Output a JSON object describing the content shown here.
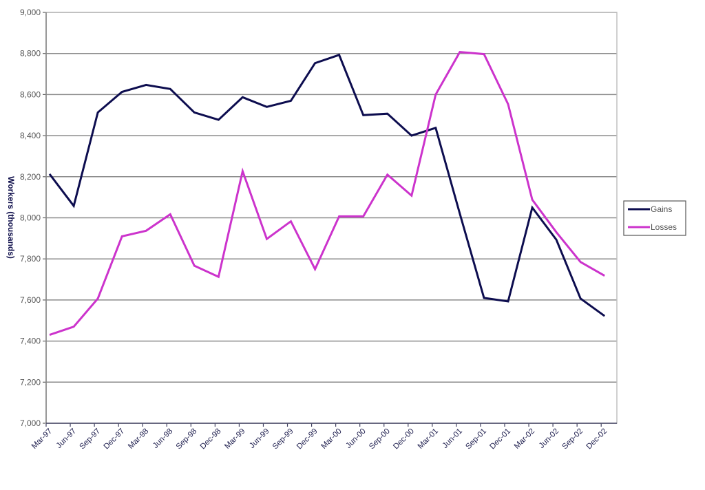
{
  "chart_data": {
    "type": "line",
    "title": "",
    "xlabel": "",
    "ylabel": "Workers (thousands)",
    "ylim": [
      7000,
      9000
    ],
    "ytick_step": 200,
    "yticks": [
      "7,000",
      "7,200",
      "7,400",
      "7,600",
      "7,800",
      "8,000",
      "8,200",
      "8,400",
      "8,600",
      "8,800",
      "9,000"
    ],
    "grid": true,
    "legend_position": "right",
    "categories": [
      "Mar-97",
      "Jun-97",
      "Sep-97",
      "Dec-97",
      "Mar-98",
      "Jun-98",
      "Sep-98",
      "Dec-98",
      "Mar-99",
      "Jun-99",
      "Sep-99",
      "Dec-99",
      "Mar-00",
      "Jun-00",
      "Sep-00",
      "Dec-00",
      "Mar-01",
      "Jun-01",
      "Sep-01",
      "Dec-01",
      "Mar-02",
      "Jun-02",
      "Sep-02",
      "Dec-02"
    ],
    "series": [
      {
        "name": "Gains",
        "color": "#0d0d4f",
        "values": [
          8213,
          8058,
          8513,
          8613,
          8647,
          8627,
          8513,
          8477,
          8587,
          8540,
          8570,
          8753,
          8793,
          8500,
          8507,
          8400,
          8438,
          8020,
          7610,
          7593,
          8050,
          7893,
          7607,
          7522
        ]
      },
      {
        "name": "Losses",
        "color": "#cc33cc",
        "values": [
          7430,
          7470,
          7607,
          7910,
          7937,
          8017,
          7767,
          7713,
          8227,
          7897,
          7983,
          7750,
          8007,
          8007,
          8210,
          8108,
          8600,
          8807,
          8797,
          8553,
          8088,
          7930,
          7785,
          7718
        ]
      }
    ]
  }
}
